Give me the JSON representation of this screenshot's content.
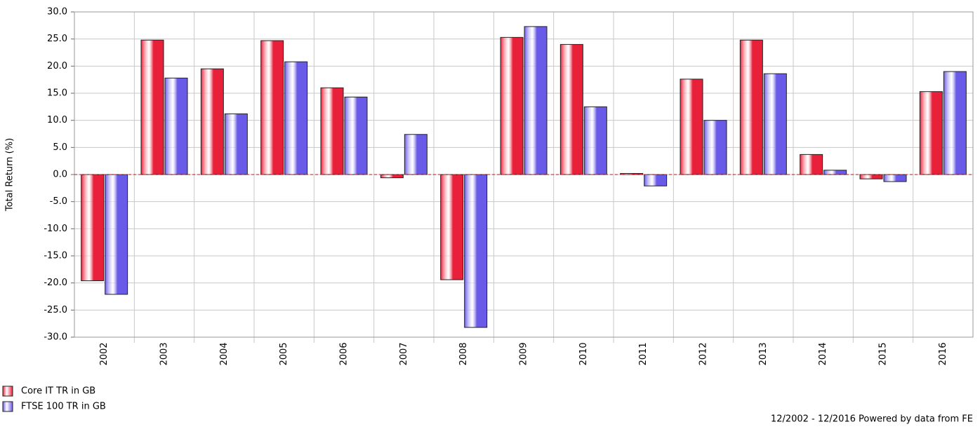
{
  "chart_data": {
    "type": "bar",
    "y_label": "Total Return (%)",
    "footer": "12/2002 - 12/2016 Powered by data from FE",
    "categories": [
      "2002",
      "2003",
      "2004",
      "2005",
      "2006",
      "2007",
      "2008",
      "2009",
      "2010",
      "2011",
      "2012",
      "2013",
      "2014",
      "2015",
      "2016"
    ],
    "series": [
      {
        "name": "Core IT TR in GB",
        "color": "#e8203a",
        "values": [
          -19.6,
          24.8,
          19.5,
          24.7,
          16.0,
          -0.6,
          -19.4,
          25.3,
          24.0,
          0.2,
          17.6,
          24.8,
          3.7,
          -0.8,
          15.3
        ]
      },
      {
        "name": "FTSE 100 TR in GB",
        "color": "#6a5ae8",
        "values": [
          -22.1,
          17.8,
          11.2,
          20.8,
          14.3,
          7.4,
          -28.2,
          27.3,
          12.5,
          -2.1,
          10.0,
          18.6,
          0.8,
          -1.3,
          19.0
        ]
      }
    ],
    "ylim": [
      -30,
      30
    ],
    "yticks": [
      {
        "value": 30,
        "label": "30.0"
      },
      {
        "value": 25,
        "label": "25.0"
      },
      {
        "value": 20,
        "label": "20.0"
      },
      {
        "value": 15,
        "label": "15.0"
      },
      {
        "value": 10,
        "label": "10.0"
      },
      {
        "value": 5,
        "label": "5.0"
      },
      {
        "value": 0,
        "label": "0.0"
      },
      {
        "value": -5,
        "label": "-5.0"
      },
      {
        "value": -10,
        "label": "-10.0"
      },
      {
        "value": -15,
        "label": "-15.0"
      },
      {
        "value": -20,
        "label": "-20.0"
      },
      {
        "value": -25,
        "label": "-25.0"
      },
      {
        "value": -30,
        "label": "-30.0"
      }
    ],
    "grid": true
  }
}
